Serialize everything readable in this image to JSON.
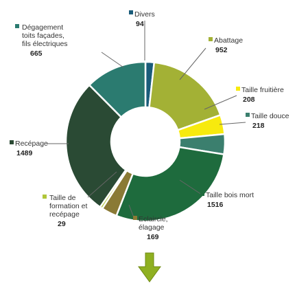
{
  "chart_data": {
    "type": "pie",
    "title": "",
    "slices": [
      {
        "name": "Divers",
        "value": 94,
        "value_text": "94",
        "color": "#1a5c7a"
      },
      {
        "name": "Abattage",
        "value": 952,
        "value_text": "952",
        "color": "#a3b135"
      },
      {
        "name": "Taille fruitière",
        "value": 208,
        "value_text": "208",
        "color": "#f7ea0e"
      },
      {
        "name": "Taille douce",
        "value": 218,
        "value_text": "218",
        "color": "#3b7f6e"
      },
      {
        "name": "Taille bois mort",
        "value": 1516,
        "value_text": "1516",
        "color": "#1e6b3d"
      },
      {
        "name": "Eclaircie, élagage",
        "value": 169,
        "value_text": "169",
        "color": "#8a7a35"
      },
      {
        "name": "Taille de formation et recépage",
        "value": 29,
        "value_text": "29",
        "color": "#b0c63a"
      },
      {
        "name": "Recépage",
        "value": 1489,
        "value_text": "1489",
        "color": "#2a4a34"
      },
      {
        "name": "Dégagement toits façades, fils électriques",
        "value": 665,
        "value_text": "665",
        "color": "#2b7b70"
      }
    ],
    "label_lines": {
      "Divers": [
        "Divers"
      ],
      "Abattage": [
        "Abattage"
      ],
      "Taille fruitière": [
        "Taille fruitière"
      ],
      "Taille douce": [
        "Taille douce"
      ],
      "Taille bois mort": [
        "Taille bois mort"
      ],
      "Eclaircie, élagage": [
        "Eclaircie,",
        "élagage"
      ],
      "Taille de formation et recépage": [
        "Taille de",
        "formation et",
        "recépage"
      ],
      "Recépage": [
        "Recépage"
      ],
      "Dégagement toits façades, fils électriques": [
        "Dégagement",
        "toits façades,",
        "fils électriques"
      ]
    },
    "legend_placement": "around-chart",
    "arrow_color": "#8fb021"
  }
}
